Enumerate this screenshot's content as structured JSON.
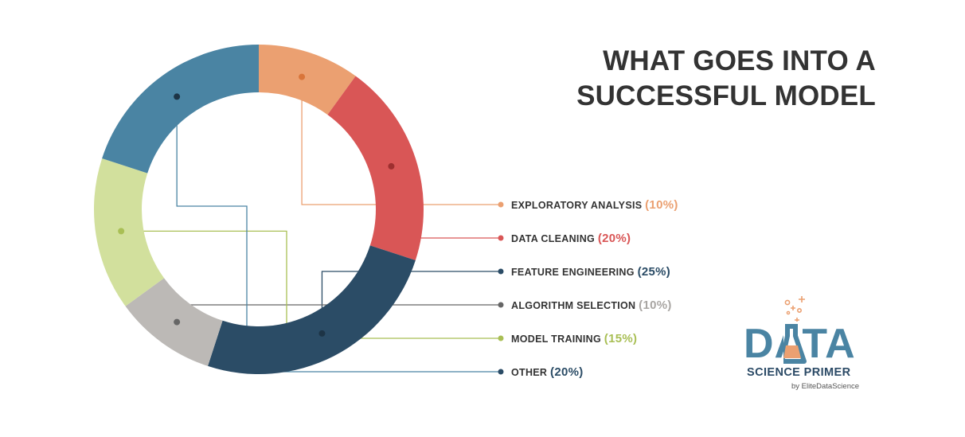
{
  "title": {
    "line1": "WHAT GOES INTO A",
    "line2": "SUCCESSFUL MODEL"
  },
  "chart_data": {
    "type": "pie",
    "donut": true,
    "title": "WHAT GOES INTO A SUCCESSFUL MODEL",
    "legend_placement": "right",
    "slices": [
      {
        "label": "EXPLORATORY ANALYSIS",
        "value": 10,
        "pct_label": "(10%)",
        "color": "#eba071"
      },
      {
        "label": "DATA CLEANING",
        "value": 20,
        "pct_label": "(20%)",
        "color": "#d95656"
      },
      {
        "label": "FEATURE ENGINEERING",
        "value": 25,
        "pct_label": "(25%)",
        "color": "#2b4c66"
      },
      {
        "label": "ALGORITHM SELECTION",
        "value": 10,
        "pct_label": "(10%)",
        "color": "#bcb9b6"
      },
      {
        "label": "MODEL TRAINING",
        "value": 15,
        "pct_label": "(15%)",
        "color": "#d2e09d"
      },
      {
        "label": "OTHER",
        "value": 20,
        "pct_label": "(20%)",
        "color": "#4a84a3"
      }
    ]
  },
  "logo": {
    "word": "DATA",
    "subtitle": "SCIENCE PRIMER",
    "byline": "by EliteDataScience",
    "primary_color": "#4a84a3",
    "accent_color": "#eba071"
  }
}
